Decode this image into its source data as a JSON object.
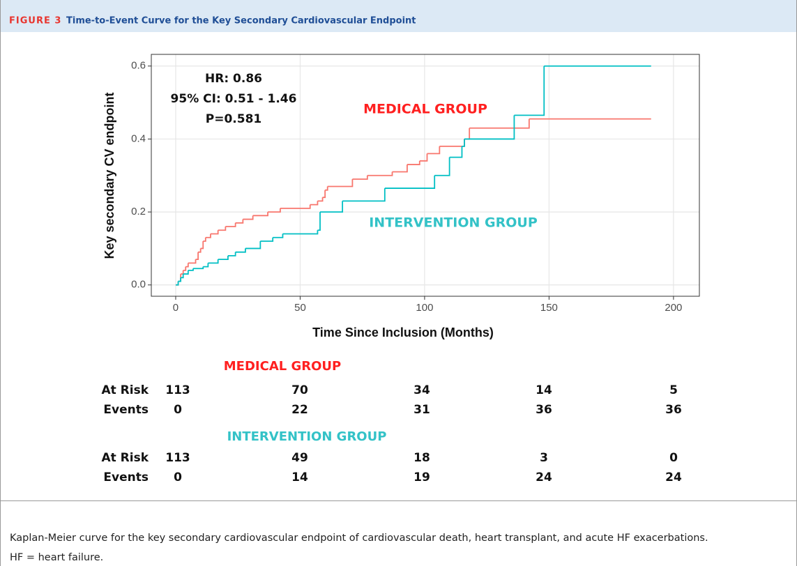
{
  "header": {
    "label": "FIGURE 3",
    "title": "Time-to-Event Curve for the Key Secondary Cardiovascular Endpoint"
  },
  "chart_data": {
    "type": "step",
    "xlabel": "Time Since Inclusion (Months)",
    "ylabel": "Key secondary CV endpoint",
    "annotations": [
      "HR: 0.86",
      "95% CI: 0.51 - 1.46",
      "P=0.581"
    ],
    "xlim": [
      -9.8,
      210.4
    ],
    "ylim": [
      -0.031,
      0.632
    ],
    "xticks": [
      0,
      50,
      100,
      150,
      200
    ],
    "yticks": [
      {
        "value": 0,
        "label": "0.0"
      },
      0.2,
      0.4,
      0.6
    ],
    "grid": true,
    "series": [
      {
        "name": "MEDICAL GROUP",
        "color": "#f8766d",
        "x": [
          0,
          1,
          2,
          3,
          4,
          5,
          8,
          9,
          10,
          11,
          12,
          14,
          17,
          20,
          24,
          27,
          31,
          37,
          42,
          54,
          57,
          59,
          60,
          61,
          71,
          77,
          87,
          93,
          98,
          101,
          106,
          116,
          118,
          142,
          191
        ],
        "values": [
          0,
          0.01,
          0.03,
          0.04,
          0.05,
          0.06,
          0.07,
          0.09,
          0.1,
          0.12,
          0.13,
          0.14,
          0.15,
          0.16,
          0.17,
          0.18,
          0.19,
          0.2,
          0.21,
          0.22,
          0.23,
          0.24,
          0.26,
          0.27,
          0.29,
          0.3,
          0.31,
          0.33,
          0.34,
          0.36,
          0.38,
          0.4,
          0.43,
          0.455,
          0.455
        ]
      },
      {
        "name": "INTERVENTION GROUP",
        "color": "#00bfc4",
        "x": [
          0,
          1,
          2,
          3,
          5,
          7,
          11,
          13,
          17,
          21,
          24,
          28,
          34,
          39,
          43,
          57,
          58,
          67,
          84,
          104,
          110,
          115,
          116,
          136,
          148,
          191
        ],
        "values": [
          0,
          0.01,
          0.02,
          0.03,
          0.04,
          0.045,
          0.05,
          0.06,
          0.07,
          0.08,
          0.09,
          0.1,
          0.12,
          0.13,
          0.14,
          0.15,
          0.2,
          0.23,
          0.265,
          0.3,
          0.35,
          0.38,
          0.4,
          0.465,
          0.6,
          0.6
        ]
      }
    ]
  },
  "risk_table": {
    "groups": [
      {
        "name": "MEDICAL GROUP",
        "rows": [
          {
            "label": "At Risk",
            "values": [
              113,
              70,
              34,
              14,
              5
            ]
          },
          {
            "label": "Events",
            "values": [
              0,
              22,
              31,
              36,
              36
            ]
          }
        ]
      },
      {
        "name": "INTERVENTION GROUP",
        "rows": [
          {
            "label": "At Risk",
            "values": [
              113,
              49,
              18,
              3,
              0
            ]
          },
          {
            "label": "Events",
            "values": [
              0,
              14,
              19,
              24,
              24
            ]
          }
        ]
      }
    ]
  },
  "caption": {
    "text": "Kaplan-Meier curve for the key secondary cardiovascular endpoint of cardiovascular death, heart transplant, and acute HF exacerbations.",
    "abbreviations": "HF = heart failure."
  }
}
